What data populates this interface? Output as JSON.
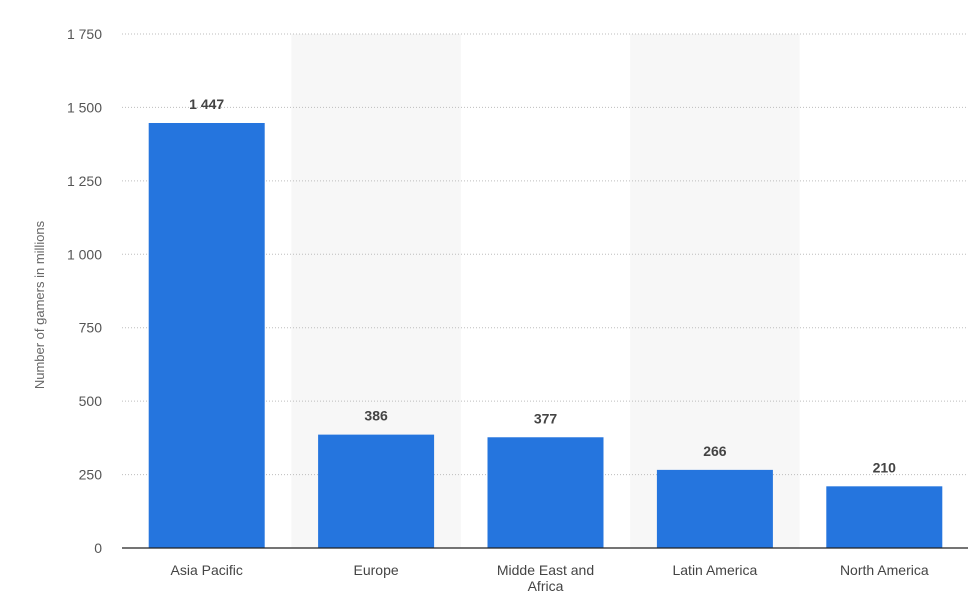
{
  "chart_data": {
    "type": "bar",
    "title": "",
    "xlabel": "",
    "ylabel": "Number of gamers in millions",
    "categories": [
      [
        "Asia Pacific"
      ],
      [
        "Europe"
      ],
      [
        "Midde East and",
        "Africa"
      ],
      [
        "Latin America"
      ],
      [
        "North America"
      ]
    ],
    "values": [
      1447,
      386,
      377,
      266,
      210
    ],
    "value_labels": [
      "1 447",
      "386",
      "377",
      "266",
      "210"
    ],
    "ylim": [
      0,
      1750
    ],
    "yticks": [
      0,
      250,
      500,
      750,
      1000,
      1250,
      1500,
      1750
    ],
    "ytick_labels": [
      "0",
      "250",
      "500",
      "750",
      "1 000",
      "1 250",
      "1 500",
      "1 750"
    ],
    "grid": true,
    "colors": {
      "bar": "#2575de",
      "band": "#f7f7f7"
    }
  }
}
